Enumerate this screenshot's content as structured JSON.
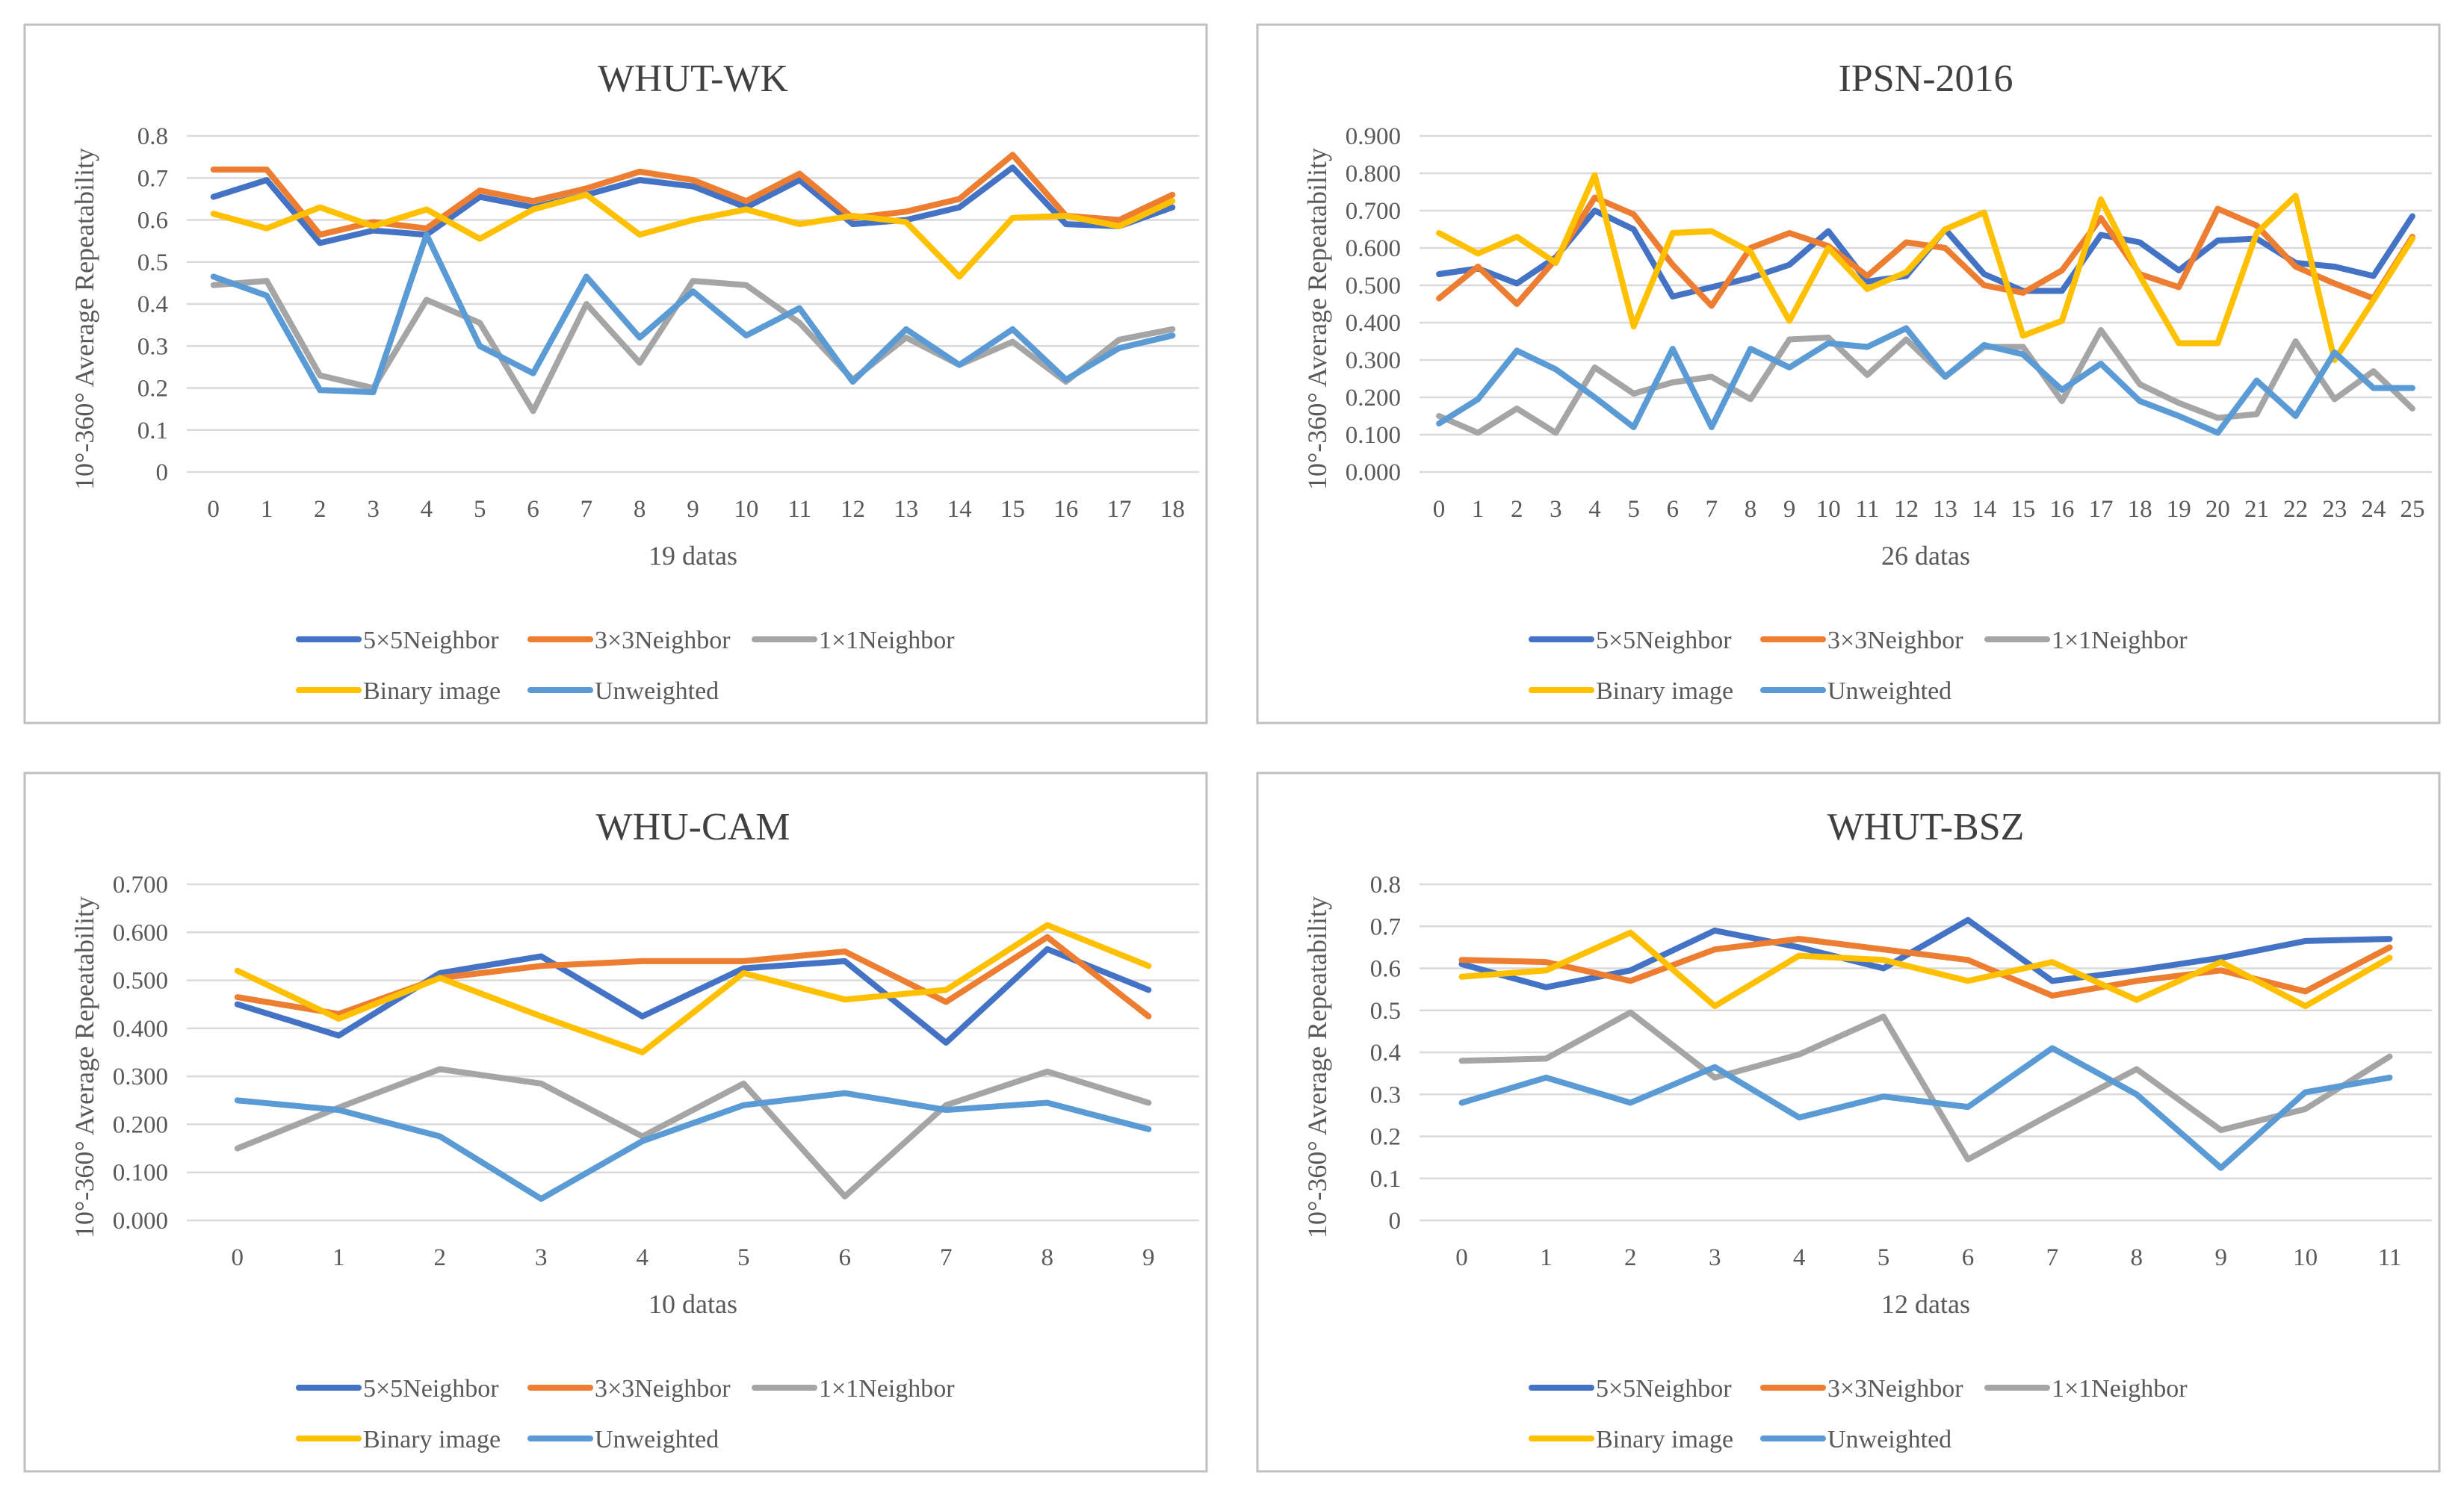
{
  "colors": {
    "s5x5": "#4472C4",
    "s3x3": "#ED7D31",
    "s1x1": "#A5A5A5",
    "binary": "#FFC000",
    "unweighted": "#5B9BD5"
  },
  "chart_data": [
    {
      "type": "line",
      "title": "WHUT-WK",
      "xlabel": "19 datas",
      "ylabel": "10°-360° Average Repeatability",
      "ylim": [
        0,
        0.8
      ],
      "yticks": [
        "0",
        "0.1",
        "0.2",
        "0.3",
        "0.4",
        "0.5",
        "0.6",
        "0.7",
        "0.8"
      ],
      "categories": [
        "0",
        "1",
        "2",
        "3",
        "4",
        "5",
        "6",
        "7",
        "8",
        "9",
        "10",
        "11",
        "12",
        "13",
        "14",
        "15",
        "16",
        "17",
        "18"
      ],
      "grid": true,
      "legend_position": "bottom",
      "series": [
        {
          "name": "5×5Neighbor",
          "values": [
            0.655,
            0.695,
            0.545,
            0.575,
            0.565,
            0.655,
            0.63,
            0.66,
            0.695,
            0.68,
            0.63,
            0.695,
            0.59,
            0.6,
            0.63,
            0.725,
            0.59,
            0.585,
            0.63
          ]
        },
        {
          "name": "3×3Neighbor",
          "values": [
            0.72,
            0.72,
            0.565,
            0.595,
            0.58,
            0.67,
            0.645,
            0.675,
            0.715,
            0.695,
            0.645,
            0.71,
            0.605,
            0.62,
            0.65,
            0.755,
            0.61,
            0.6,
            0.66
          ]
        },
        {
          "name": "1×1Neighbor",
          "values": [
            0.445,
            0.455,
            0.23,
            0.2,
            0.41,
            0.355,
            0.145,
            0.4,
            0.26,
            0.455,
            0.445,
            0.355,
            0.22,
            0.32,
            0.255,
            0.31,
            0.215,
            0.315,
            0.34
          ]
        },
        {
          "name": "Binary image",
          "values": [
            0.615,
            0.58,
            0.63,
            0.585,
            0.625,
            0.555,
            0.625,
            0.66,
            0.565,
            0.6,
            0.625,
            0.59,
            0.61,
            0.595,
            0.465,
            0.605,
            0.61,
            0.585,
            0.645
          ]
        },
        {
          "name": "Unweighted",
          "values": [
            0.465,
            0.42,
            0.195,
            0.19,
            0.565,
            0.3,
            0.235,
            0.465,
            0.32,
            0.43,
            0.325,
            0.39,
            0.215,
            0.34,
            0.255,
            0.34,
            0.22,
            0.295,
            0.325
          ]
        }
      ]
    },
    {
      "type": "line",
      "title": "IPSN-2016",
      "xlabel": "26 datas",
      "ylabel": "10°-360° Average Repeatability",
      "ylim": [
        0,
        0.9
      ],
      "yticks": [
        "0.000",
        "0.100",
        "0.200",
        "0.300",
        "0.400",
        "0.500",
        "0.600",
        "0.700",
        "0.800",
        "0.900"
      ],
      "categories": [
        "0",
        "1",
        "2",
        "3",
        "4",
        "5",
        "6",
        "7",
        "8",
        "9",
        "10",
        "11",
        "12",
        "13",
        "14",
        "15",
        "16",
        "17",
        "18",
        "19",
        "20",
        "21",
        "22",
        "23",
        "24",
        "25"
      ],
      "grid": true,
      "legend_position": "bottom",
      "series": [
        {
          "name": "5×5Neighbor",
          "values": [
            0.53,
            0.545,
            0.505,
            0.575,
            0.7,
            0.65,
            0.47,
            0.495,
            0.52,
            0.555,
            0.645,
            0.51,
            0.525,
            0.65,
            0.53,
            0.485,
            0.485,
            0.635,
            0.615,
            0.54,
            0.62,
            0.625,
            0.56,
            0.55,
            0.525,
            0.685
          ]
        },
        {
          "name": "3×3Neighbor",
          "values": [
            0.465,
            0.55,
            0.45,
            0.57,
            0.735,
            0.69,
            0.555,
            0.445,
            0.6,
            0.64,
            0.605,
            0.525,
            0.615,
            0.6,
            0.5,
            0.48,
            0.54,
            0.68,
            0.53,
            0.495,
            0.705,
            0.66,
            0.55,
            0.505,
            0.465,
            0.63
          ]
        },
        {
          "name": "1×1Neighbor",
          "values": [
            0.15,
            0.105,
            0.17,
            0.105,
            0.28,
            0.21,
            0.24,
            0.255,
            0.195,
            0.355,
            0.36,
            0.26,
            0.355,
            0.255,
            0.335,
            0.335,
            0.19,
            0.38,
            0.235,
            0.185,
            0.145,
            0.155,
            0.35,
            0.195,
            0.27,
            0.17
          ]
        },
        {
          "name": "Binary image",
          "values": [
            0.64,
            0.585,
            0.63,
            0.56,
            0.795,
            0.39,
            0.64,
            0.645,
            0.59,
            0.405,
            0.6,
            0.49,
            0.535,
            0.65,
            0.695,
            0.365,
            0.405,
            0.73,
            0.525,
            0.345,
            0.345,
            0.64,
            0.74,
            0.3,
            0.46,
            0.625
          ]
        },
        {
          "name": "Unweighted",
          "values": [
            0.13,
            0.195,
            0.325,
            0.275,
            0.2,
            0.12,
            0.33,
            0.12,
            0.33,
            0.28,
            0.345,
            0.335,
            0.385,
            0.255,
            0.34,
            0.315,
            0.22,
            0.29,
            0.19,
            0.15,
            0.105,
            0.245,
            0.15,
            0.32,
            0.225,
            0.225
          ]
        }
      ]
    },
    {
      "type": "line",
      "title": "WHU-CAM",
      "xlabel": "10 datas",
      "ylabel": "10°-360° Average Repeatability",
      "ylim": [
        0,
        0.7
      ],
      "yticks": [
        "0.000",
        "0.100",
        "0.200",
        "0.300",
        "0.400",
        "0.500",
        "0.600",
        "0.700"
      ],
      "categories": [
        "0",
        "1",
        "2",
        "3",
        "4",
        "5",
        "6",
        "7",
        "8",
        "9"
      ],
      "grid": true,
      "legend_position": "bottom",
      "series": [
        {
          "name": "5×5Neighbor",
          "values": [
            0.45,
            0.385,
            0.515,
            0.55,
            0.425,
            0.525,
            0.54,
            0.37,
            0.565,
            0.48
          ]
        },
        {
          "name": "3×3Neighbor",
          "values": [
            0.465,
            0.43,
            0.505,
            0.53,
            0.54,
            0.54,
            0.56,
            0.455,
            0.59,
            0.425
          ]
        },
        {
          "name": "1×1Neighbor",
          "values": [
            0.15,
            0.235,
            0.315,
            0.285,
            0.175,
            0.285,
            0.05,
            0.24,
            0.31,
            0.245
          ]
        },
        {
          "name": "Binary image",
          "values": [
            0.52,
            0.42,
            0.505,
            0.425,
            0.35,
            0.515,
            0.46,
            0.48,
            0.615,
            0.53
          ]
        },
        {
          "name": "Unweighted",
          "values": [
            0.25,
            0.23,
            0.175,
            0.045,
            0.165,
            0.24,
            0.265,
            0.23,
            0.245,
            0.19
          ]
        }
      ]
    },
    {
      "type": "line",
      "title": "WHUT-BSZ",
      "xlabel": "12 datas",
      "ylabel": "10°-360° Average Repeatability",
      "ylim": [
        0,
        0.8
      ],
      "yticks": [
        "0",
        "0.1",
        "0.2",
        "0.3",
        "0.4",
        "0.5",
        "0.6",
        "0.7",
        "0.8"
      ],
      "categories": [
        "0",
        "1",
        "2",
        "3",
        "4",
        "5",
        "6",
        "7",
        "8",
        "9",
        "10",
        "11"
      ],
      "grid": true,
      "legend_position": "bottom",
      "series": [
        {
          "name": "5×5Neighbor",
          "values": [
            0.61,
            0.555,
            0.595,
            0.69,
            0.65,
            0.6,
            0.715,
            0.57,
            0.595,
            0.625,
            0.665,
            0.67
          ]
        },
        {
          "name": "3×3Neighbor",
          "values": [
            0.62,
            0.615,
            0.57,
            0.645,
            0.67,
            0.645,
            0.62,
            0.535,
            0.57,
            0.595,
            0.545,
            0.65
          ]
        },
        {
          "name": "1×1Neighbor",
          "values": [
            0.38,
            0.385,
            0.495,
            0.34,
            0.395,
            0.485,
            0.145,
            0.255,
            0.36,
            0.215,
            0.265,
            0.39
          ]
        },
        {
          "name": "Binary image",
          "values": [
            0.58,
            0.595,
            0.685,
            0.51,
            0.63,
            0.62,
            0.57,
            0.615,
            0.525,
            0.615,
            0.51,
            0.625
          ]
        },
        {
          "name": "Unweighted",
          "values": [
            0.28,
            0.34,
            0.28,
            0.365,
            0.245,
            0.295,
            0.27,
            0.41,
            0.3,
            0.125,
            0.305,
            0.34
          ]
        }
      ]
    }
  ]
}
